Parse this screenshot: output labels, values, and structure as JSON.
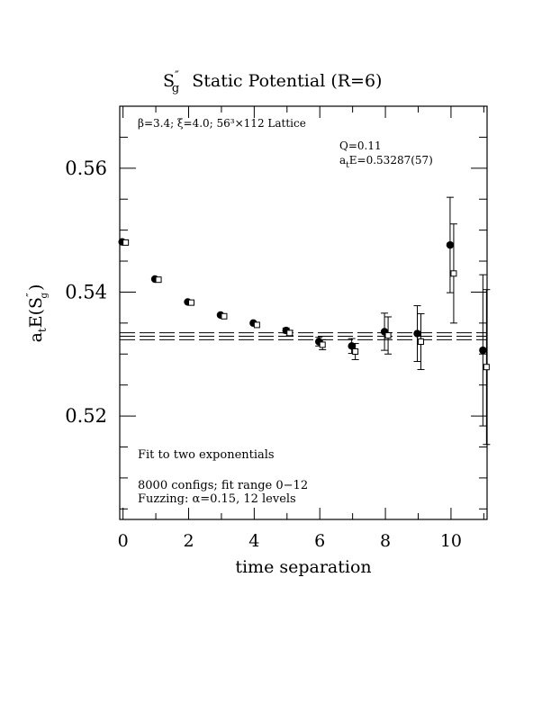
{
  "chart_data": {
    "type": "scatter",
    "title": {
      "symbol": "S",
      "sup": "″",
      "sub": "g",
      "text": "Static Potential (R=6)"
    },
    "xlabel": "time separation",
    "ylabel": {
      "prefix": "a",
      "prefix_sub": "t",
      "main": "E(S",
      "sup": "″",
      "sub": "g",
      "close": ")"
    },
    "xlim": [
      -0.1,
      11.1
    ],
    "ylim": [
      0.5033,
      0.57
    ],
    "x_ticks": [
      0,
      2,
      4,
      6,
      8,
      10
    ],
    "x_tick_labels": [
      "0",
      "2",
      "4",
      "6",
      "8",
      "10"
    ],
    "y_ticks": [
      0.52,
      0.54,
      0.56
    ],
    "y_tick_labels": [
      "0.52",
      "0.54",
      "0.56"
    ],
    "annotations": {
      "lattice": "β=3.4; ξ=4.0; 56³×112 Lattice",
      "q": "Q=0.11",
      "energy": {
        "prefix": "a",
        "sub": "t",
        "text": "E=0.53287(57)"
      },
      "fit": "Fit to two exponentials",
      "configs": "8000 configs; fit range 0−12",
      "fuzzing": "Fuzzing: α=0.15, 12 levels"
    },
    "fit": {
      "value": 0.53287,
      "error": 0.00057,
      "x_range": [
        -0.1,
        11.1
      ]
    },
    "series": [
      {
        "marker": "filled-circle",
        "points": [
          {
            "x": 0,
            "y": 0.5481,
            "err": 0.0002
          },
          {
            "x": 1,
            "y": 0.5421,
            "err": 0.0002
          },
          {
            "x": 2,
            "y": 0.5384,
            "err": 0.0002
          },
          {
            "x": 3,
            "y": 0.5363,
            "err": 0.0002
          },
          {
            "x": 4,
            "y": 0.535,
            "err": 0.0003
          },
          {
            "x": 5,
            "y": 0.5338,
            "err": 0.0004
          },
          {
            "x": 6,
            "y": 0.532,
            "err": 0.0007
          },
          {
            "x": 7,
            "y": 0.5313,
            "err": 0.0012
          },
          {
            "x": 8,
            "y": 0.5336,
            "err": 0.003
          },
          {
            "x": 9,
            "y": 0.5333,
            "err": 0.0045
          },
          {
            "x": 10,
            "y": 0.5476,
            "err": 0.0077
          },
          {
            "x": 11,
            "y": 0.5306,
            "err": 0.0122
          }
        ]
      },
      {
        "marker": "open-square",
        "points": [
          {
            "x": 0,
            "y": 0.548,
            "err": 0.0002
          },
          {
            "x": 1,
            "y": 0.542,
            "err": 0.0002
          },
          {
            "x": 2,
            "y": 0.5383,
            "err": 0.0002
          },
          {
            "x": 3,
            "y": 0.5361,
            "err": 0.0002
          },
          {
            "x": 4,
            "y": 0.5347,
            "err": 0.0003
          },
          {
            "x": 5,
            "y": 0.5334,
            "err": 0.0004
          },
          {
            "x": 6,
            "y": 0.5315,
            "err": 0.0008
          },
          {
            "x": 7,
            "y": 0.5304,
            "err": 0.0013
          },
          {
            "x": 8,
            "y": 0.533,
            "err": 0.003
          },
          {
            "x": 9,
            "y": 0.532,
            "err": 0.0045
          },
          {
            "x": 10,
            "y": 0.543,
            "err": 0.008
          },
          {
            "x": 11,
            "y": 0.5279,
            "err": 0.0125
          }
        ]
      }
    ]
  }
}
